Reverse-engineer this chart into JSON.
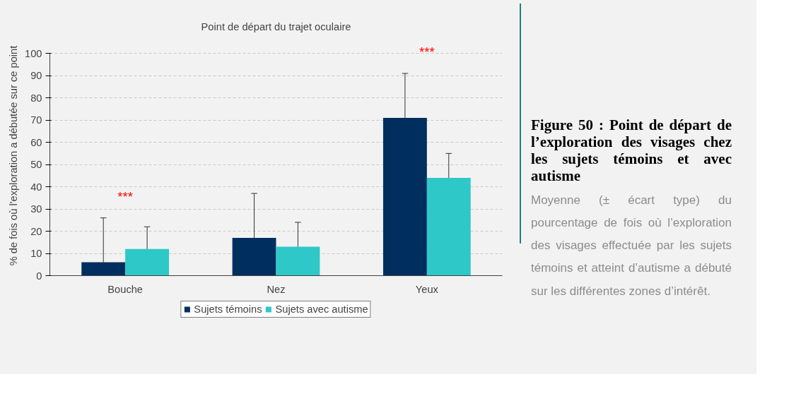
{
  "chart_data": {
    "type": "bar",
    "title": "Point de départ du trajet oculaire",
    "ylabel": "% de fois où l'exploration a débutée sur ce point",
    "categories": [
      "Bouche",
      "Nez",
      "Yeux"
    ],
    "series": [
      {
        "name": "Sujets témoins",
        "color": "#002f5f",
        "values": [
          6,
          17,
          71
        ],
        "errors": [
          [
            6,
            26
          ],
          [
            17,
            37
          ],
          [
            71,
            91
          ]
        ]
      },
      {
        "name": "Sujets avec autisme",
        "color": "#2ec8c8",
        "values": [
          12,
          13,
          44
        ],
        "errors": [
          [
            12,
            22
          ],
          [
            13,
            24
          ],
          [
            44,
            55
          ]
        ]
      }
    ],
    "ylim": [
      0,
      100
    ],
    "yticks": [
      0,
      10,
      20,
      30,
      40,
      50,
      60,
      70,
      80,
      90,
      100
    ],
    "grid": "y",
    "legend": "bottom",
    "annotations": [
      "***",
      "***",
      "Figure 50 : Point de départ de l’exploration des visages chez les sujets témoins et avec autisme",
      "Moyenne (± écart type) du pourcentage de fois où l’exploration des visages effectuée par les sujets témoins et atteint d’autisme a débuté sur les différentes zones d’intérêt."
    ]
  }
}
